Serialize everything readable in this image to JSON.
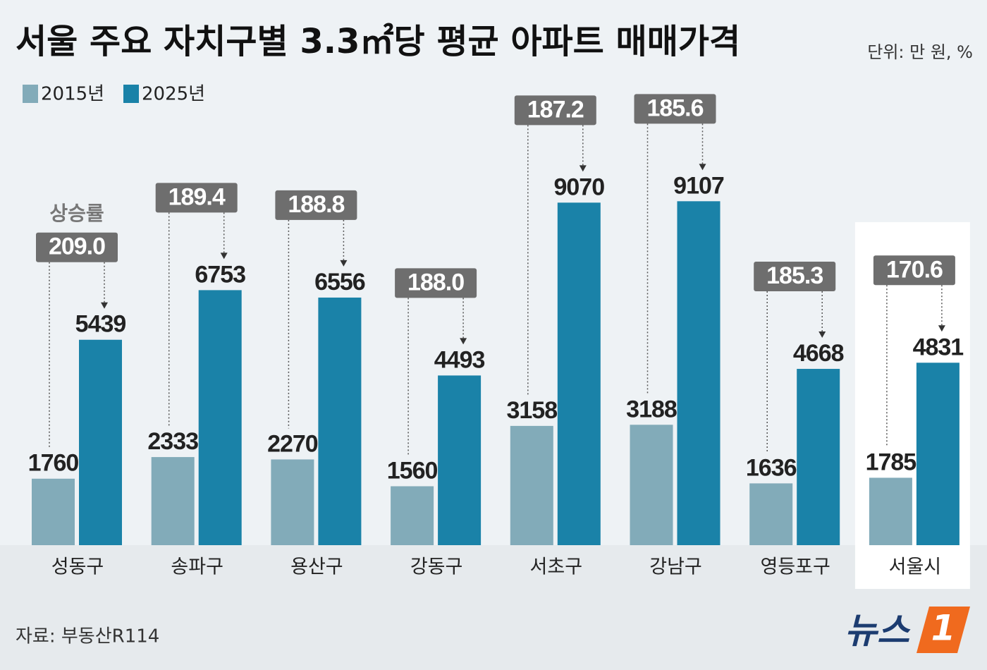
{
  "chart_data": {
    "type": "bar",
    "title": "서울 주요 자치구별 3.3㎡당 평균 아파트 매매가격",
    "unit_note": "단위: 만 원, %",
    "categories": [
      "성동구",
      "송파구",
      "용산구",
      "강동구",
      "서초구",
      "강남구",
      "영등포구",
      "서울시"
    ],
    "series": [
      {
        "name": "2015년",
        "color": "#82abb9",
        "values": [
          1760,
          2333,
          2270,
          1560,
          3158,
          3188,
          1636,
          1785
        ]
      },
      {
        "name": "2025년",
        "color": "#1a82a8",
        "values": [
          5439,
          6753,
          6556,
          4493,
          9070,
          9107,
          4668,
          4831
        ]
      }
    ],
    "rates": {
      "name": "상승률",
      "values": [
        209.0,
        189.4,
        188.8,
        188.0,
        187.2,
        185.6,
        185.3,
        170.6
      ],
      "value_labels": [
        "209.0",
        "189.4",
        "188.8",
        "188.0",
        "187.2",
        "185.6",
        "185.3",
        "170.6"
      ]
    },
    "ylim": [
      0,
      9300
    ],
    "highlight": 7,
    "source": "자료: 부동산R114",
    "logo": {
      "text": "뉴스",
      "mark": "1"
    }
  }
}
